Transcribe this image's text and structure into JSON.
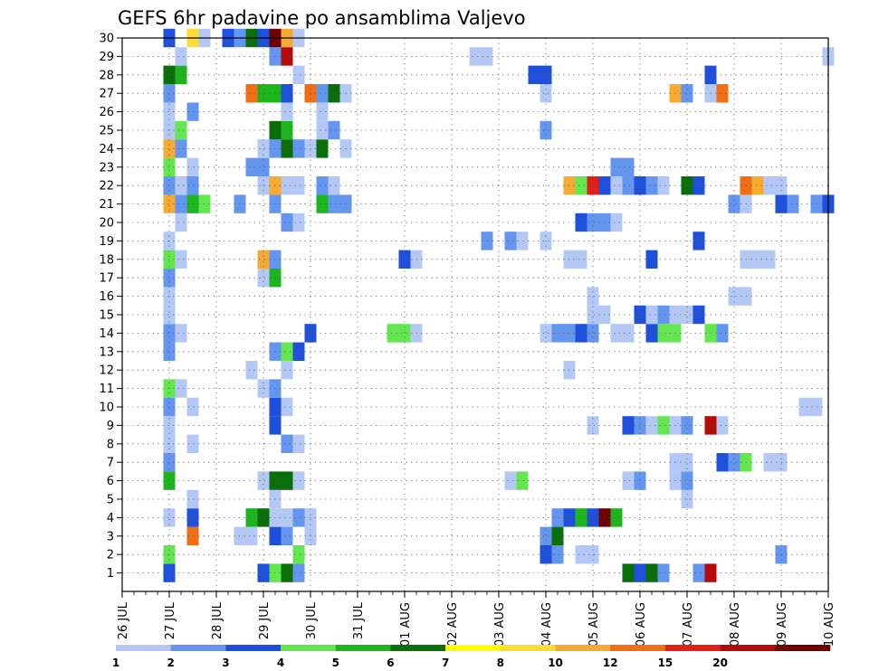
{
  "chart_data": {
    "type": "heatmap",
    "title": "GEFS 6hr padavine po ansamblima Valjevo",
    "xlabel": "",
    "ylabel": "",
    "x_ticks": [
      "26 JUL",
      "27 JUL",
      "28 JUL",
      "29 JUL",
      "30 JUL",
      "31 JUL",
      "01 AUG",
      "02 AUG",
      "03 AUG",
      "04 AUG",
      "05 AUG",
      "06 AUG",
      "07 AUG",
      "08 AUG",
      "09 AUG",
      "10 AUG"
    ],
    "y_ticks": [
      "1",
      "2",
      "3",
      "4",
      "5",
      "6",
      "7",
      "8",
      "9",
      "10",
      "11",
      "12",
      "13",
      "14",
      "15",
      "16",
      "17",
      "18",
      "19",
      "20",
      "21",
      "22",
      "23",
      "24",
      "25",
      "26",
      "27",
      "28",
      "29",
      "30"
    ],
    "x_unit": "6-hour steps from 26 JUL 00Z",
    "xlim": [
      0,
      60
    ],
    "ylim": [
      0,
      30
    ],
    "grid": true,
    "colorbar": {
      "orientation": "horizontal",
      "placement": "bottom",
      "labels": [
        "1",
        "2",
        "3",
        "4",
        "5",
        "6",
        "7",
        "8",
        "10",
        "12",
        "15",
        "20"
      ],
      "colors": [
        "#b4c8f5",
        "#6496f0",
        "#1e50dc",
        "#64e650",
        "#1eb41e",
        "#0a6e0a",
        "#ffff00",
        "#ffdc32",
        "#f5aa32",
        "#f06e14",
        "#e61e14",
        "#b40a0a",
        "#6e0000"
      ]
    },
    "series": [
      {
        "member": 1,
        "cells": [
          [
            4,
            2
          ],
          [
            12,
            2
          ],
          [
            13,
            3
          ],
          [
            14,
            5
          ],
          [
            15,
            1
          ],
          [
            43,
            5
          ],
          [
            44,
            2
          ],
          [
            45,
            5
          ],
          [
            46,
            1
          ],
          [
            49,
            1
          ],
          [
            50,
            11
          ]
        ]
      },
      {
        "member": 2,
        "cells": [
          [
            4,
            3
          ],
          [
            15,
            3
          ],
          [
            36,
            2
          ],
          [
            37,
            1
          ],
          [
            39,
            0
          ],
          [
            40,
            0
          ],
          [
            56,
            1
          ]
        ]
      },
      {
        "member": 3,
        "cells": [
          [
            6,
            9
          ],
          [
            10,
            0
          ],
          [
            11,
            0
          ],
          [
            13,
            2
          ],
          [
            14,
            1
          ],
          [
            16,
            0
          ],
          [
            36,
            1
          ],
          [
            37,
            5
          ]
        ]
      },
      {
        "member": 4,
        "cells": [
          [
            4,
            0
          ],
          [
            6,
            2
          ],
          [
            11,
            4
          ],
          [
            12,
            5
          ],
          [
            13,
            0
          ],
          [
            14,
            0
          ],
          [
            15,
            1
          ],
          [
            16,
            0
          ],
          [
            37,
            1
          ],
          [
            38,
            2
          ],
          [
            39,
            4
          ],
          [
            40,
            2
          ],
          [
            41,
            12
          ],
          [
            42,
            4
          ]
        ]
      },
      {
        "member": 5,
        "cells": [
          [
            6,
            0
          ],
          [
            13,
            0
          ],
          [
            48,
            0
          ]
        ]
      },
      {
        "member": 6,
        "cells": [
          [
            4,
            4
          ],
          [
            12,
            0
          ],
          [
            13,
            5
          ],
          [
            14,
            5
          ],
          [
            15,
            0
          ],
          [
            33,
            0
          ],
          [
            34,
            3
          ],
          [
            43,
            0
          ],
          [
            44,
            1
          ],
          [
            47,
            0
          ],
          [
            48,
            1
          ]
        ]
      },
      {
        "member": 7,
        "cells": [
          [
            4,
            1
          ],
          [
            47,
            0
          ],
          [
            48,
            0
          ],
          [
            51,
            2
          ],
          [
            52,
            1
          ],
          [
            53,
            3
          ],
          [
            55,
            0
          ],
          [
            56,
            0
          ]
        ]
      },
      {
        "member": 8,
        "cells": [
          [
            4,
            0
          ],
          [
            6,
            0
          ],
          [
            14,
            1
          ],
          [
            15,
            0
          ]
        ]
      },
      {
        "member": 9,
        "cells": [
          [
            4,
            0
          ],
          [
            13,
            2
          ],
          [
            40,
            0
          ],
          [
            43,
            2
          ],
          [
            44,
            1
          ],
          [
            45,
            0
          ],
          [
            46,
            3
          ],
          [
            47,
            0
          ],
          [
            48,
            1
          ],
          [
            50,
            11
          ],
          [
            51,
            0
          ]
        ]
      },
      {
        "member": 10,
        "cells": [
          [
            4,
            1
          ],
          [
            6,
            0
          ],
          [
            13,
            2
          ],
          [
            14,
            0
          ],
          [
            58,
            0
          ],
          [
            59,
            0
          ]
        ]
      },
      {
        "member": 11,
        "cells": [
          [
            4,
            3
          ],
          [
            5,
            0
          ],
          [
            12,
            0
          ],
          [
            13,
            1
          ]
        ]
      },
      {
        "member": 12,
        "cells": [
          [
            11,
            0
          ],
          [
            14,
            0
          ],
          [
            38,
            0
          ]
        ]
      },
      {
        "member": 13,
        "cells": [
          [
            4,
            1
          ],
          [
            13,
            1
          ],
          [
            14,
            3
          ],
          [
            15,
            2
          ]
        ]
      },
      {
        "member": 14,
        "cells": [
          [
            4,
            1
          ],
          [
            5,
            0
          ],
          [
            16,
            2
          ],
          [
            23,
            3
          ],
          [
            24,
            3
          ],
          [
            25,
            0
          ],
          [
            36,
            0
          ],
          [
            37,
            1
          ],
          [
            38,
            1
          ],
          [
            39,
            2
          ],
          [
            40,
            1
          ],
          [
            42,
            0
          ],
          [
            43,
            0
          ],
          [
            45,
            2
          ],
          [
            46,
            3
          ],
          [
            47,
            3
          ],
          [
            50,
            3
          ],
          [
            51,
            1
          ]
        ]
      },
      {
        "member": 15,
        "cells": [
          [
            4,
            0
          ],
          [
            40,
            0
          ],
          [
            41,
            0
          ],
          [
            44,
            2
          ],
          [
            45,
            0
          ],
          [
            46,
            1
          ],
          [
            47,
            0
          ],
          [
            48,
            0
          ],
          [
            49,
            2
          ]
        ]
      },
      {
        "member": 16,
        "cells": [
          [
            4,
            0
          ],
          [
            40,
            0
          ],
          [
            52,
            0
          ],
          [
            53,
            0
          ]
        ]
      },
      {
        "member": 17,
        "cells": [
          [
            4,
            1
          ],
          [
            12,
            0
          ],
          [
            13,
            4
          ]
        ]
      },
      {
        "member": 18,
        "cells": [
          [
            4,
            3
          ],
          [
            5,
            0
          ],
          [
            12,
            8
          ],
          [
            13,
            1
          ],
          [
            24,
            2
          ],
          [
            25,
            0
          ],
          [
            38,
            0
          ],
          [
            39,
            0
          ],
          [
            45,
            2
          ],
          [
            53,
            0
          ],
          [
            54,
            0
          ],
          [
            55,
            0
          ]
        ]
      },
      {
        "member": 19,
        "cells": [
          [
            4,
            0
          ],
          [
            31,
            1
          ],
          [
            33,
            1
          ],
          [
            34,
            0
          ],
          [
            36,
            0
          ],
          [
            49,
            2
          ]
        ]
      },
      {
        "member": 20,
        "cells": [
          [
            5,
            0
          ],
          [
            14,
            1
          ],
          [
            15,
            0
          ],
          [
            39,
            2
          ],
          [
            40,
            1
          ],
          [
            41,
            1
          ],
          [
            42,
            0
          ]
        ]
      },
      {
        "member": 21,
        "cells": [
          [
            4,
            8
          ],
          [
            5,
            1
          ],
          [
            6,
            4
          ],
          [
            7,
            3
          ],
          [
            10,
            1
          ],
          [
            13,
            1
          ],
          [
            17,
            4
          ],
          [
            18,
            1
          ],
          [
            19,
            1
          ],
          [
            52,
            1
          ],
          [
            53,
            0
          ],
          [
            56,
            2
          ],
          [
            57,
            1
          ],
          [
            59,
            1
          ],
          [
            60,
            2
          ]
        ]
      },
      {
        "member": 22,
        "cells": [
          [
            4,
            1
          ],
          [
            5,
            0
          ],
          [
            6,
            1
          ],
          [
            12,
            0
          ],
          [
            13,
            8
          ],
          [
            14,
            0
          ],
          [
            15,
            0
          ],
          [
            17,
            1
          ],
          [
            18,
            0
          ],
          [
            38,
            8
          ],
          [
            39,
            3
          ],
          [
            40,
            10
          ],
          [
            41,
            2
          ],
          [
            42,
            0
          ],
          [
            43,
            1
          ],
          [
            44,
            2
          ],
          [
            45,
            1
          ],
          [
            46,
            0
          ],
          [
            48,
            5
          ],
          [
            49,
            2
          ],
          [
            53,
            9
          ],
          [
            54,
            8
          ],
          [
            55,
            0
          ],
          [
            56,
            0
          ]
        ]
      },
      {
        "member": 23,
        "cells": [
          [
            4,
            3
          ],
          [
            6,
            0
          ],
          [
            11,
            1
          ],
          [
            12,
            1
          ],
          [
            42,
            1
          ],
          [
            43,
            1
          ]
        ]
      },
      {
        "member": 24,
        "cells": [
          [
            4,
            8
          ],
          [
            5,
            1
          ],
          [
            12,
            0
          ],
          [
            13,
            1
          ],
          [
            14,
            5
          ],
          [
            15,
            1
          ],
          [
            16,
            0
          ],
          [
            17,
            5
          ],
          [
            19,
            0
          ]
        ]
      },
      {
        "member": 25,
        "cells": [
          [
            4,
            0
          ],
          [
            5,
            3
          ],
          [
            13,
            5
          ],
          [
            14,
            4
          ],
          [
            17,
            0
          ],
          [
            18,
            1
          ],
          [
            36,
            1
          ]
        ]
      },
      {
        "member": 26,
        "cells": [
          [
            4,
            0
          ],
          [
            6,
            1
          ],
          [
            14,
            0
          ],
          [
            17,
            0
          ]
        ]
      },
      {
        "member": 27,
        "cells": [
          [
            4,
            1
          ],
          [
            11,
            9
          ],
          [
            12,
            4
          ],
          [
            13,
            4
          ],
          [
            14,
            2
          ],
          [
            16,
            9
          ],
          [
            17,
            1
          ],
          [
            18,
            5
          ],
          [
            19,
            0
          ],
          [
            36,
            0
          ],
          [
            47,
            8
          ],
          [
            48,
            1
          ],
          [
            50,
            0
          ],
          [
            51,
            9
          ]
        ]
      },
      {
        "member": 28,
        "cells": [
          [
            4,
            5
          ],
          [
            5,
            4
          ],
          [
            15,
            0
          ],
          [
            35,
            2
          ],
          [
            36,
            2
          ],
          [
            50,
            2
          ]
        ]
      },
      {
        "member": 29,
        "cells": [
          [
            5,
            0
          ],
          [
            13,
            1
          ],
          [
            14,
            11
          ],
          [
            30,
            0
          ],
          [
            31,
            0
          ],
          [
            60,
            0
          ]
        ]
      },
      {
        "member": 30,
        "cells": [
          [
            4,
            2
          ],
          [
            6,
            7
          ],
          [
            7,
            0
          ],
          [
            9,
            2
          ],
          [
            10,
            1
          ],
          [
            11,
            5
          ],
          [
            12,
            2
          ],
          [
            13,
            12
          ],
          [
            14,
            8
          ],
          [
            15,
            0
          ]
        ]
      }
    ]
  }
}
